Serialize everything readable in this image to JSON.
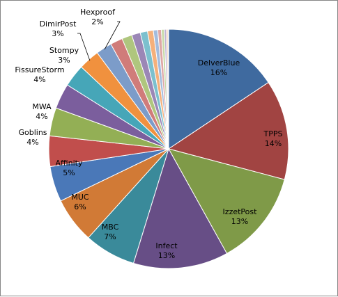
{
  "chart_data": {
    "type": "pie",
    "title": "",
    "start_angle_deg": 0,
    "direction": "clockwise",
    "labels_shown": [
      "DelverBlue",
      "TPPS",
      "IzzetPost",
      "Infect",
      "MBC",
      "MUC",
      "Affinity",
      "Goblins",
      "MWA",
      "FissureStorm",
      "Stompy",
      "DimirPost",
      "Hexproof"
    ],
    "slices": [
      {
        "name": "DelverBlue",
        "value": 16.0,
        "label": "16%",
        "color": "#3F6A9F"
      },
      {
        "name": "TPPS",
        "value": 13.8,
        "label": "14%",
        "color": "#A14442"
      },
      {
        "name": "IzzetPost",
        "value": 13.1,
        "label": "13%",
        "color": "#7F9A48"
      },
      {
        "name": "Infect",
        "value": 13.1,
        "label": "13%",
        "color": "#674E86"
      },
      {
        "name": "MBC",
        "value": 7.1,
        "label": "7%",
        "color": "#3A8A9A"
      },
      {
        "name": "MUC",
        "value": 6.3,
        "label": "6%",
        "color": "#D17A36"
      },
      {
        "name": "Affinity",
        "value": 4.9,
        "label": "5%",
        "color": "#4A78B8"
      },
      {
        "name": "Goblins",
        "value": 4.2,
        "label": "4%",
        "color": "#C14E4C"
      },
      {
        "name": "MWA",
        "value": 3.9,
        "label": "4%",
        "color": "#93AF55"
      },
      {
        "name": "FissureStorm",
        "value": 3.5,
        "label": "4%",
        "color": "#7B5E9D"
      },
      {
        "name": "Stompy",
        "value": 3.1,
        "label": "3%",
        "color": "#46A6B8"
      },
      {
        "name": "DimirPost",
        "value": 2.9,
        "label": "3%",
        "color": "#F0913E"
      },
      {
        "name": "Hexproof",
        "value": 2.2,
        "label": "2%",
        "color": "#7C9CC9"
      },
      {
        "name": "",
        "value": 1.7,
        "label": "",
        "color": "#D07C7A"
      },
      {
        "name": "",
        "value": 1.4,
        "label": "",
        "color": "#AFC67E"
      },
      {
        "name": "",
        "value": 1.2,
        "label": "",
        "color": "#9B87B6"
      },
      {
        "name": "",
        "value": 1.0,
        "label": "",
        "color": "#7CC0CE"
      },
      {
        "name": "",
        "value": 0.8,
        "label": "",
        "color": "#F5B07B"
      },
      {
        "name": "",
        "value": 0.6,
        "label": "",
        "color": "#A4BCDD"
      },
      {
        "name": "",
        "value": 0.5,
        "label": "",
        "color": "#DEA7A6"
      },
      {
        "name": "",
        "value": 0.4,
        "label": "",
        "color": "#C8DAA8"
      },
      {
        "name": "",
        "value": 0.3,
        "label": "",
        "color": "#C1B4D3"
      },
      {
        "name": "",
        "value": 0.2,
        "label": "",
        "color": "#F7C8A3"
      },
      {
        "name": "",
        "value": 0.1,
        "label": "",
        "color": "#BDD9E2"
      }
    ]
  }
}
